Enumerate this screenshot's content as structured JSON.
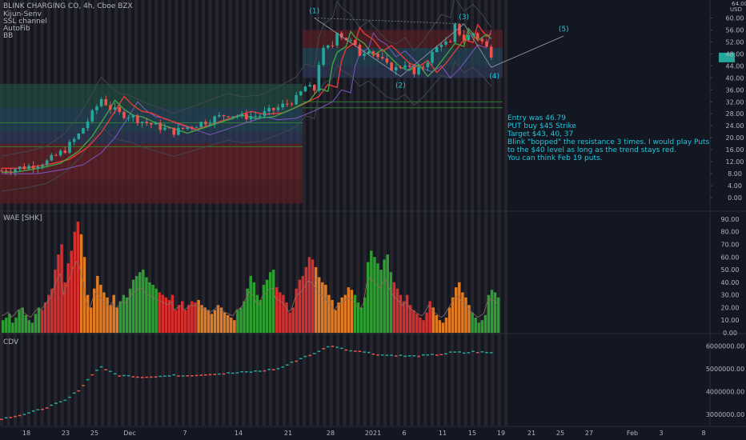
{
  "header": {
    "symbol_title": "BLINK CHARGING CO, 4h, Cboe BZX",
    "indicators": [
      "Kijun-Senv",
      "SSL channel",
      "AutoFib",
      "BB"
    ]
  },
  "currency": "USD",
  "price_axis_top": "64.00",
  "note": {
    "lines": [
      "Entry was 46.79",
      "PUT buy $45 Strike",
      "Target $43, 40, 37",
      "",
      "Blink \"bopped\" the resistance 3 times. I would play Puts",
      "to the $40 level as long as the trend stays red.",
      "You can think Feb 19 puts."
    ]
  },
  "wave_labels": [
    "(1)",
    "(2)",
    "(3)",
    "(4)",
    "(5)"
  ],
  "panels": {
    "wae_label": "WAE [SHK]",
    "cdv_label": "CDV"
  },
  "colors": {
    "background": "#131722",
    "up": "#26a69a",
    "down": "#ef5350",
    "wae_green": "#2e9d32",
    "wae_red": "#d32f2f",
    "wae_orange": "#e07b24",
    "note": "#26c6da"
  },
  "chart_data": [
    {
      "type": "candlestick",
      "title": "BLINK CHARGING CO, 4h, Cboe BZX",
      "ylabel": "USD",
      "ylim": [
        -4,
        66
      ],
      "yticks": [
        "64.00",
        "60.00",
        "56.00",
        "52.00",
        "48.00",
        "44.00",
        "40.00",
        "36.00",
        "32.00",
        "28.00",
        "24.00",
        "20.00",
        "16.00",
        "12.00",
        "8.00",
        "4.00",
        "0.00"
      ],
      "x_tick_labels": [
        "18",
        "23",
        "25",
        "Dec",
        "7",
        "14",
        "21",
        "28",
        "2021",
        "6",
        "11",
        "15",
        "19",
        "21",
        "25",
        "27",
        "Feb",
        "3",
        "8"
      ],
      "close_path": [
        [
          0,
          9
        ],
        [
          6,
          10.5
        ],
        [
          10,
          12
        ],
        [
          14,
          16
        ],
        [
          17,
          21
        ],
        [
          20,
          28
        ],
        [
          22,
          33
        ],
        [
          24,
          30
        ],
        [
          26,
          28
        ],
        [
          28,
          27.5
        ],
        [
          31,
          25.5
        ],
        [
          34,
          24
        ],
        [
          38,
          22
        ],
        [
          42,
          24
        ],
        [
          46,
          26
        ],
        [
          50,
          28
        ],
        [
          53,
          27
        ],
        [
          57,
          27.5
        ],
        [
          61,
          30
        ],
        [
          65,
          33
        ],
        [
          67,
          37
        ],
        [
          69,
          36
        ],
        [
          70,
          45
        ],
        [
          71,
          49
        ],
        [
          73,
          51
        ],
        [
          74,
          56
        ],
        [
          75,
          54
        ],
        [
          77,
          52
        ],
        [
          79,
          48
        ],
        [
          81,
          50
        ],
        [
          83,
          47
        ],
        [
          85,
          44
        ],
        [
          87,
          43
        ],
        [
          89,
          45
        ],
        [
          91,
          41
        ],
        [
          93,
          44
        ],
        [
          95,
          48
        ],
        [
          97,
          52
        ],
        [
          99,
          51
        ],
        [
          100,
          57
        ],
        [
          102,
          53
        ],
        [
          104,
          55
        ],
        [
          106,
          52
        ],
        [
          108,
          48
        ]
      ],
      "annotations": [
        "(1)",
        "(2)",
        "(3)",
        "(4)",
        "(5)"
      ]
    },
    {
      "type": "bar",
      "title": "WAE [SHK]",
      "ylim": [
        0,
        95
      ],
      "yticks": [
        "90.00",
        "80.00",
        "70.00",
        "60.00",
        "50.00",
        "40.00",
        "30.00",
        "20.00",
        "10.00",
        "0.00"
      ],
      "values": [
        10,
        12,
        15,
        8,
        12,
        18,
        20,
        14,
        10,
        8,
        15,
        20,
        18,
        24,
        30,
        35,
        50,
        62,
        70,
        40,
        55,
        65,
        80,
        88,
        78,
        60,
        30,
        20,
        35,
        45,
        38,
        32,
        28,
        22,
        30,
        20,
        25,
        30,
        28,
        35,
        42,
        45,
        48,
        50,
        44,
        40,
        38,
        35,
        32,
        30,
        28,
        26,
        30,
        18,
        22,
        25,
        18,
        22,
        25,
        24,
        26,
        22,
        20,
        18,
        15,
        18,
        22,
        20,
        16,
        14,
        12,
        10,
        18,
        20,
        25,
        35,
        45,
        40,
        30,
        26,
        38,
        42,
        48,
        50,
        36,
        32,
        30,
        24,
        16,
        20,
        35,
        42,
        45,
        52,
        60,
        58,
        52,
        44,
        40,
        38,
        30,
        26,
        18,
        24,
        28,
        30,
        36,
        34,
        30,
        24,
        20,
        28,
        56,
        65,
        60,
        55,
        50,
        58,
        62,
        48,
        40,
        35,
        30,
        25,
        30,
        22,
        18,
        15,
        12,
        10,
        16,
        25,
        20,
        14,
        10,
        8,
        12,
        20,
        28,
        36,
        40,
        32,
        28,
        22,
        16,
        12,
        8,
        10,
        14,
        30,
        34,
        32,
        28
      ]
    },
    {
      "type": "line",
      "title": "CDV",
      "ylim": [
        2500000,
        6500000
      ],
      "yticks": [
        "6000000.00",
        "5000000.00",
        "4000000.00",
        "3000000.00"
      ],
      "x": [
        0,
        6,
        10,
        14,
        17,
        20,
        22,
        24,
        26,
        28,
        31,
        34,
        38,
        42,
        46,
        50,
        53,
        57,
        61,
        65,
        67,
        69,
        70,
        71,
        73,
        74,
        75,
        77,
        79,
        81,
        83,
        85,
        87,
        89,
        91,
        93,
        95,
        97,
        99,
        100,
        102,
        104,
        106,
        108
      ],
      "values": [
        2800000,
        3050000,
        3300000,
        3600000,
        4050000,
        4750000,
        5100000,
        4850000,
        4700000,
        4680000,
        4640000,
        4660000,
        4700000,
        4710000,
        4760000,
        4800000,
        4840000,
        4900000,
        5000000,
        5350000,
        5550000,
        5650000,
        5750000,
        5900000,
        6000000,
        5950000,
        5880000,
        5800000,
        5780000,
        5700000,
        5620000,
        5600000,
        5580000,
        5560000,
        5550000,
        5570000,
        5600000,
        5640000,
        5700000,
        5720000,
        5700000,
        5740000,
        5720000,
        5700000
      ]
    }
  ]
}
